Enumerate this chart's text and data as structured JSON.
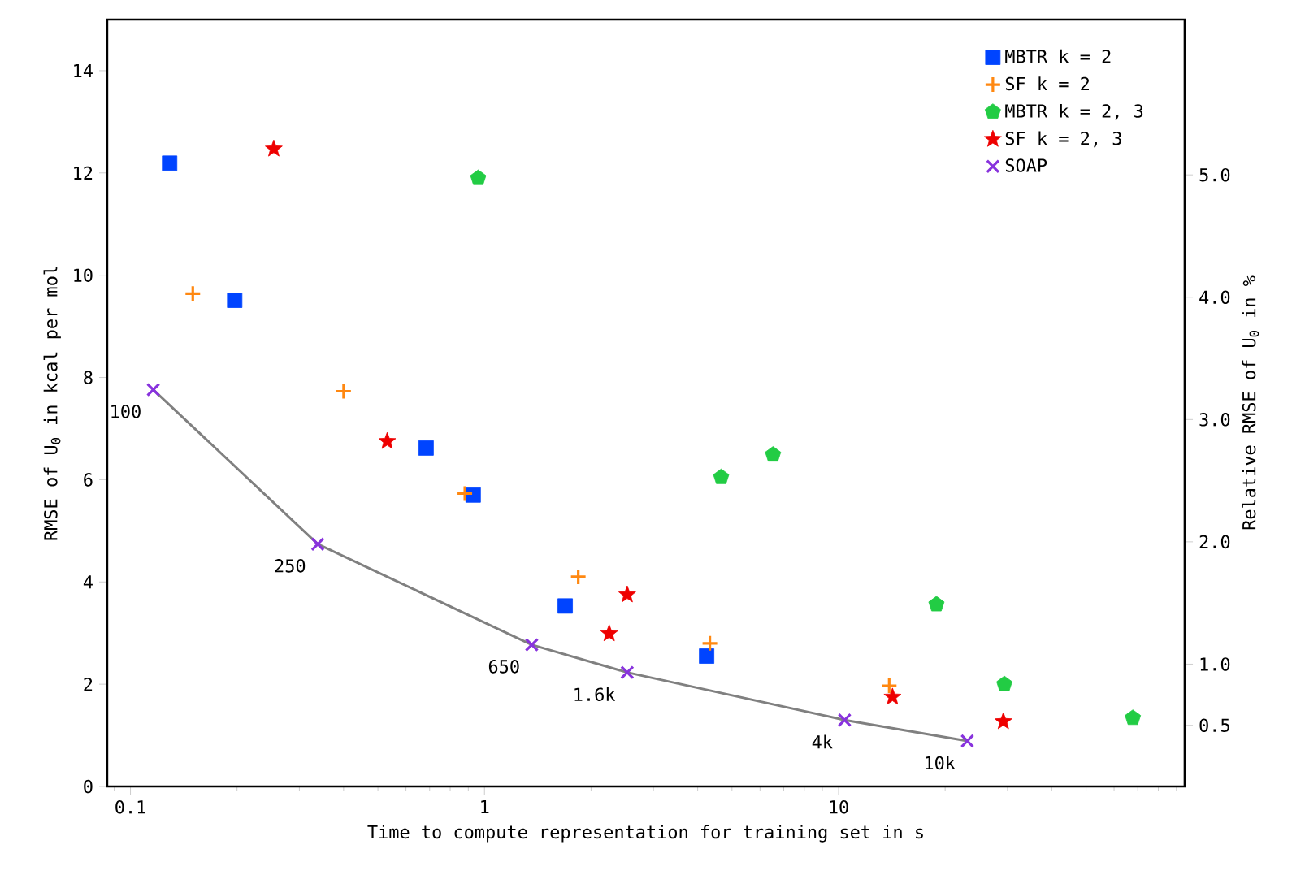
{
  "chart_data": {
    "type": "scatter",
    "xlabel": "Time to compute representation for training set in s",
    "ylabel": "RMSE of U$_{0}$ in kcal per mol",
    "y2label": "Relative RMSE of U$_{0}$ in %",
    "log": "x",
    "legend": "top right",
    "xlim": [
      0.086,
      95
    ],
    "xticks": [
      0.1,
      1,
      10
    ],
    "ylim": [
      0,
      15
    ],
    "yticks": [
      0,
      2,
      4,
      6,
      8,
      10,
      12,
      14
    ],
    "y2lim": [
      0,
      6.27
    ],
    "y2ticks": [
      {
        "value": 0.5,
        "label": "0.5"
      },
      {
        "value": 1,
        "label": "1.0"
      },
      {
        "value": 2,
        "label": "2.0"
      },
      {
        "value": 3,
        "label": "3.0"
      },
      {
        "value": 4,
        "label": "4.0"
      },
      {
        "value": 5,
        "label": "5.0"
      }
    ],
    "series": [
      {
        "type": "line",
        "color": "#808080",
        "marker": "none",
        "x": [
          0.116,
          0.338,
          1.36,
          2.53,
          10.4,
          23.1
        ],
        "values": [
          7.76,
          4.74,
          2.77,
          2.23,
          1.3,
          0.89
        ]
      },
      {
        "name": "MBTR k = 2",
        "color": "#0044ff",
        "marker": "square",
        "x": [
          0.129,
          0.197,
          0.684,
          0.929,
          1.69,
          4.24
        ],
        "values": [
          12.19,
          9.51,
          6.62,
          5.7,
          3.53,
          2.55
        ]
      },
      {
        "name": "SF k = 2",
        "color": "#ff8811",
        "marker": "plus",
        "x": [
          0.15,
          0.4,
          0.88,
          1.84,
          4.33,
          13.9
        ],
        "values": [
          9.64,
          7.73,
          5.73,
          4.1,
          2.8,
          1.97
        ]
      },
      {
        "name": "MBTR k = 2, 3",
        "color": "#22cc44",
        "x": [
          0.96,
          4.66,
          6.53,
          18.9,
          29.4,
          67.8
        ],
        "values": [
          11.9,
          6.05,
          6.49,
          3.56,
          2.0,
          1.34
        ]
      },
      {
        "name": "SF k = 2, 3",
        "color": "#ee0000",
        "marker": "star",
        "x": [
          0.254,
          0.531,
          2.25,
          2.53,
          14.2,
          29.2
        ],
        "values": [
          12.47,
          6.75,
          2.99,
          3.75,
          1.75,
          1.27
        ]
      },
      {
        "name": "SOAP",
        "color": "#8833dd",
        "marker": "x",
        "x": [
          0.116,
          0.338,
          1.36,
          2.53,
          10.4,
          23.1
        ],
        "values": [
          7.76,
          4.74,
          2.77,
          2.23,
          1.3,
          0.89
        ]
      }
    ],
    "annotations": [
      {
        "text": "100",
        "x": 0.116,
        "y": 7.76
      },
      {
        "text": "250",
        "x": 0.338,
        "y": 4.74
      },
      {
        "text": "650",
        "x": 1.36,
        "y": 2.77
      },
      {
        "text": "1.6k",
        "x": 2.53,
        "y": 2.23
      },
      {
        "text": "4k",
        "x": 10.4,
        "y": 1.3
      },
      {
        "text": "10k",
        "x": 23.1,
        "y": 0.89
      }
    ]
  }
}
